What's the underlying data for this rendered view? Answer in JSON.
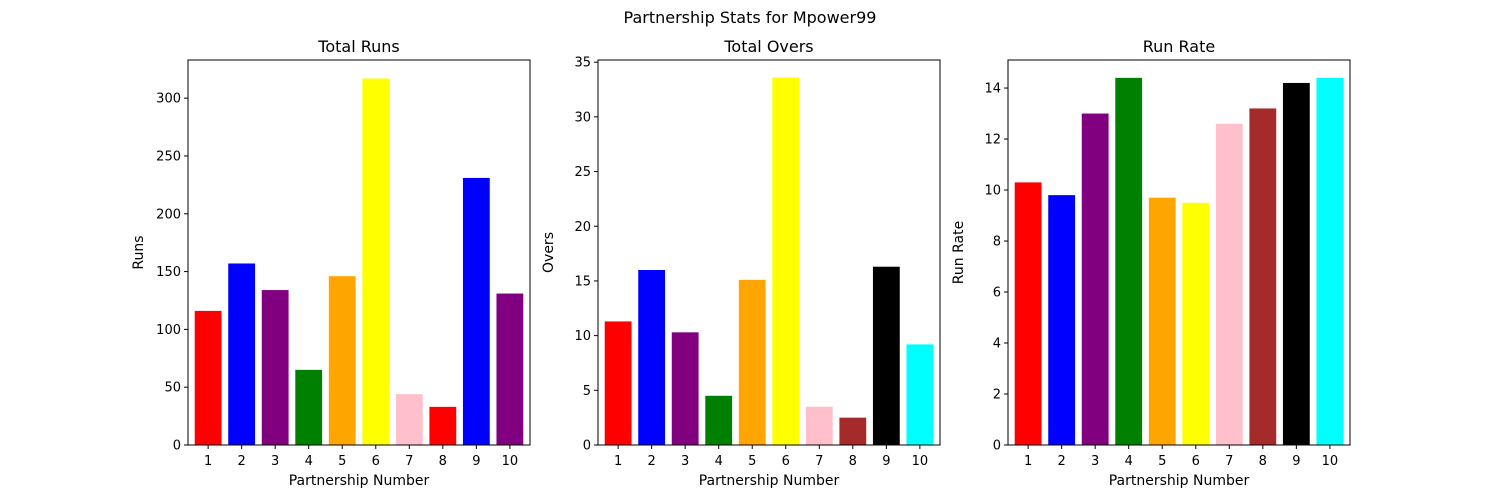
{
  "figure_title": "Partnership Stats for Mpower99",
  "chart_data": [
    {
      "type": "bar",
      "title": "Total Runs",
      "xlabel": "Partnership Number",
      "ylabel": "Runs",
      "categories": [
        "1",
        "2",
        "3",
        "4",
        "5",
        "6",
        "7",
        "8",
        "9",
        "10"
      ],
      "values": [
        116,
        157,
        134,
        65,
        146,
        317,
        44,
        33,
        231,
        131
      ],
      "colors": [
        "#ff0000",
        "#0000ff",
        "#800080",
        "#008000",
        "#ffa500",
        "#ffff00",
        "#ffc0cb",
        "#ff0000",
        "#0000ff",
        "#800080"
      ],
      "ylim": [
        0,
        333
      ],
      "yticks": [
        0,
        50,
        100,
        150,
        200,
        250,
        300
      ],
      "grid": false
    },
    {
      "type": "bar",
      "title": "Total Overs",
      "xlabel": "Partnership Number",
      "ylabel": "Overs",
      "categories": [
        "1",
        "2",
        "3",
        "4",
        "5",
        "6",
        "7",
        "8",
        "9",
        "10"
      ],
      "values": [
        11.3,
        16.0,
        10.3,
        4.5,
        15.1,
        33.6,
        3.5,
        2.5,
        16.3,
        9.2
      ],
      "colors": [
        "#ff0000",
        "#0000ff",
        "#800080",
        "#008000",
        "#ffa500",
        "#ffff00",
        "#ffc0cb",
        "#a52a2a",
        "#000000",
        "#00ffff"
      ],
      "ylim": [
        0,
        35.2
      ],
      "yticks": [
        0,
        5,
        10,
        15,
        20,
        25,
        30,
        35
      ],
      "grid": false
    },
    {
      "type": "bar",
      "title": "Run Rate",
      "xlabel": "Partnership Number",
      "ylabel": "Run Rate",
      "categories": [
        "1",
        "2",
        "3",
        "4",
        "5",
        "6",
        "7",
        "8",
        "9",
        "10"
      ],
      "values": [
        10.3,
        9.8,
        13.0,
        14.4,
        9.7,
        9.5,
        12.6,
        13.2,
        14.2,
        14.4
      ],
      "colors": [
        "#ff0000",
        "#0000ff",
        "#800080",
        "#008000",
        "#ffa500",
        "#ffff00",
        "#ffc0cb",
        "#a52a2a",
        "#000000",
        "#00ffff"
      ],
      "ylim": [
        0,
        15.1
      ],
      "yticks": [
        0,
        2,
        4,
        6,
        8,
        10,
        12,
        14
      ],
      "grid": false
    }
  ]
}
